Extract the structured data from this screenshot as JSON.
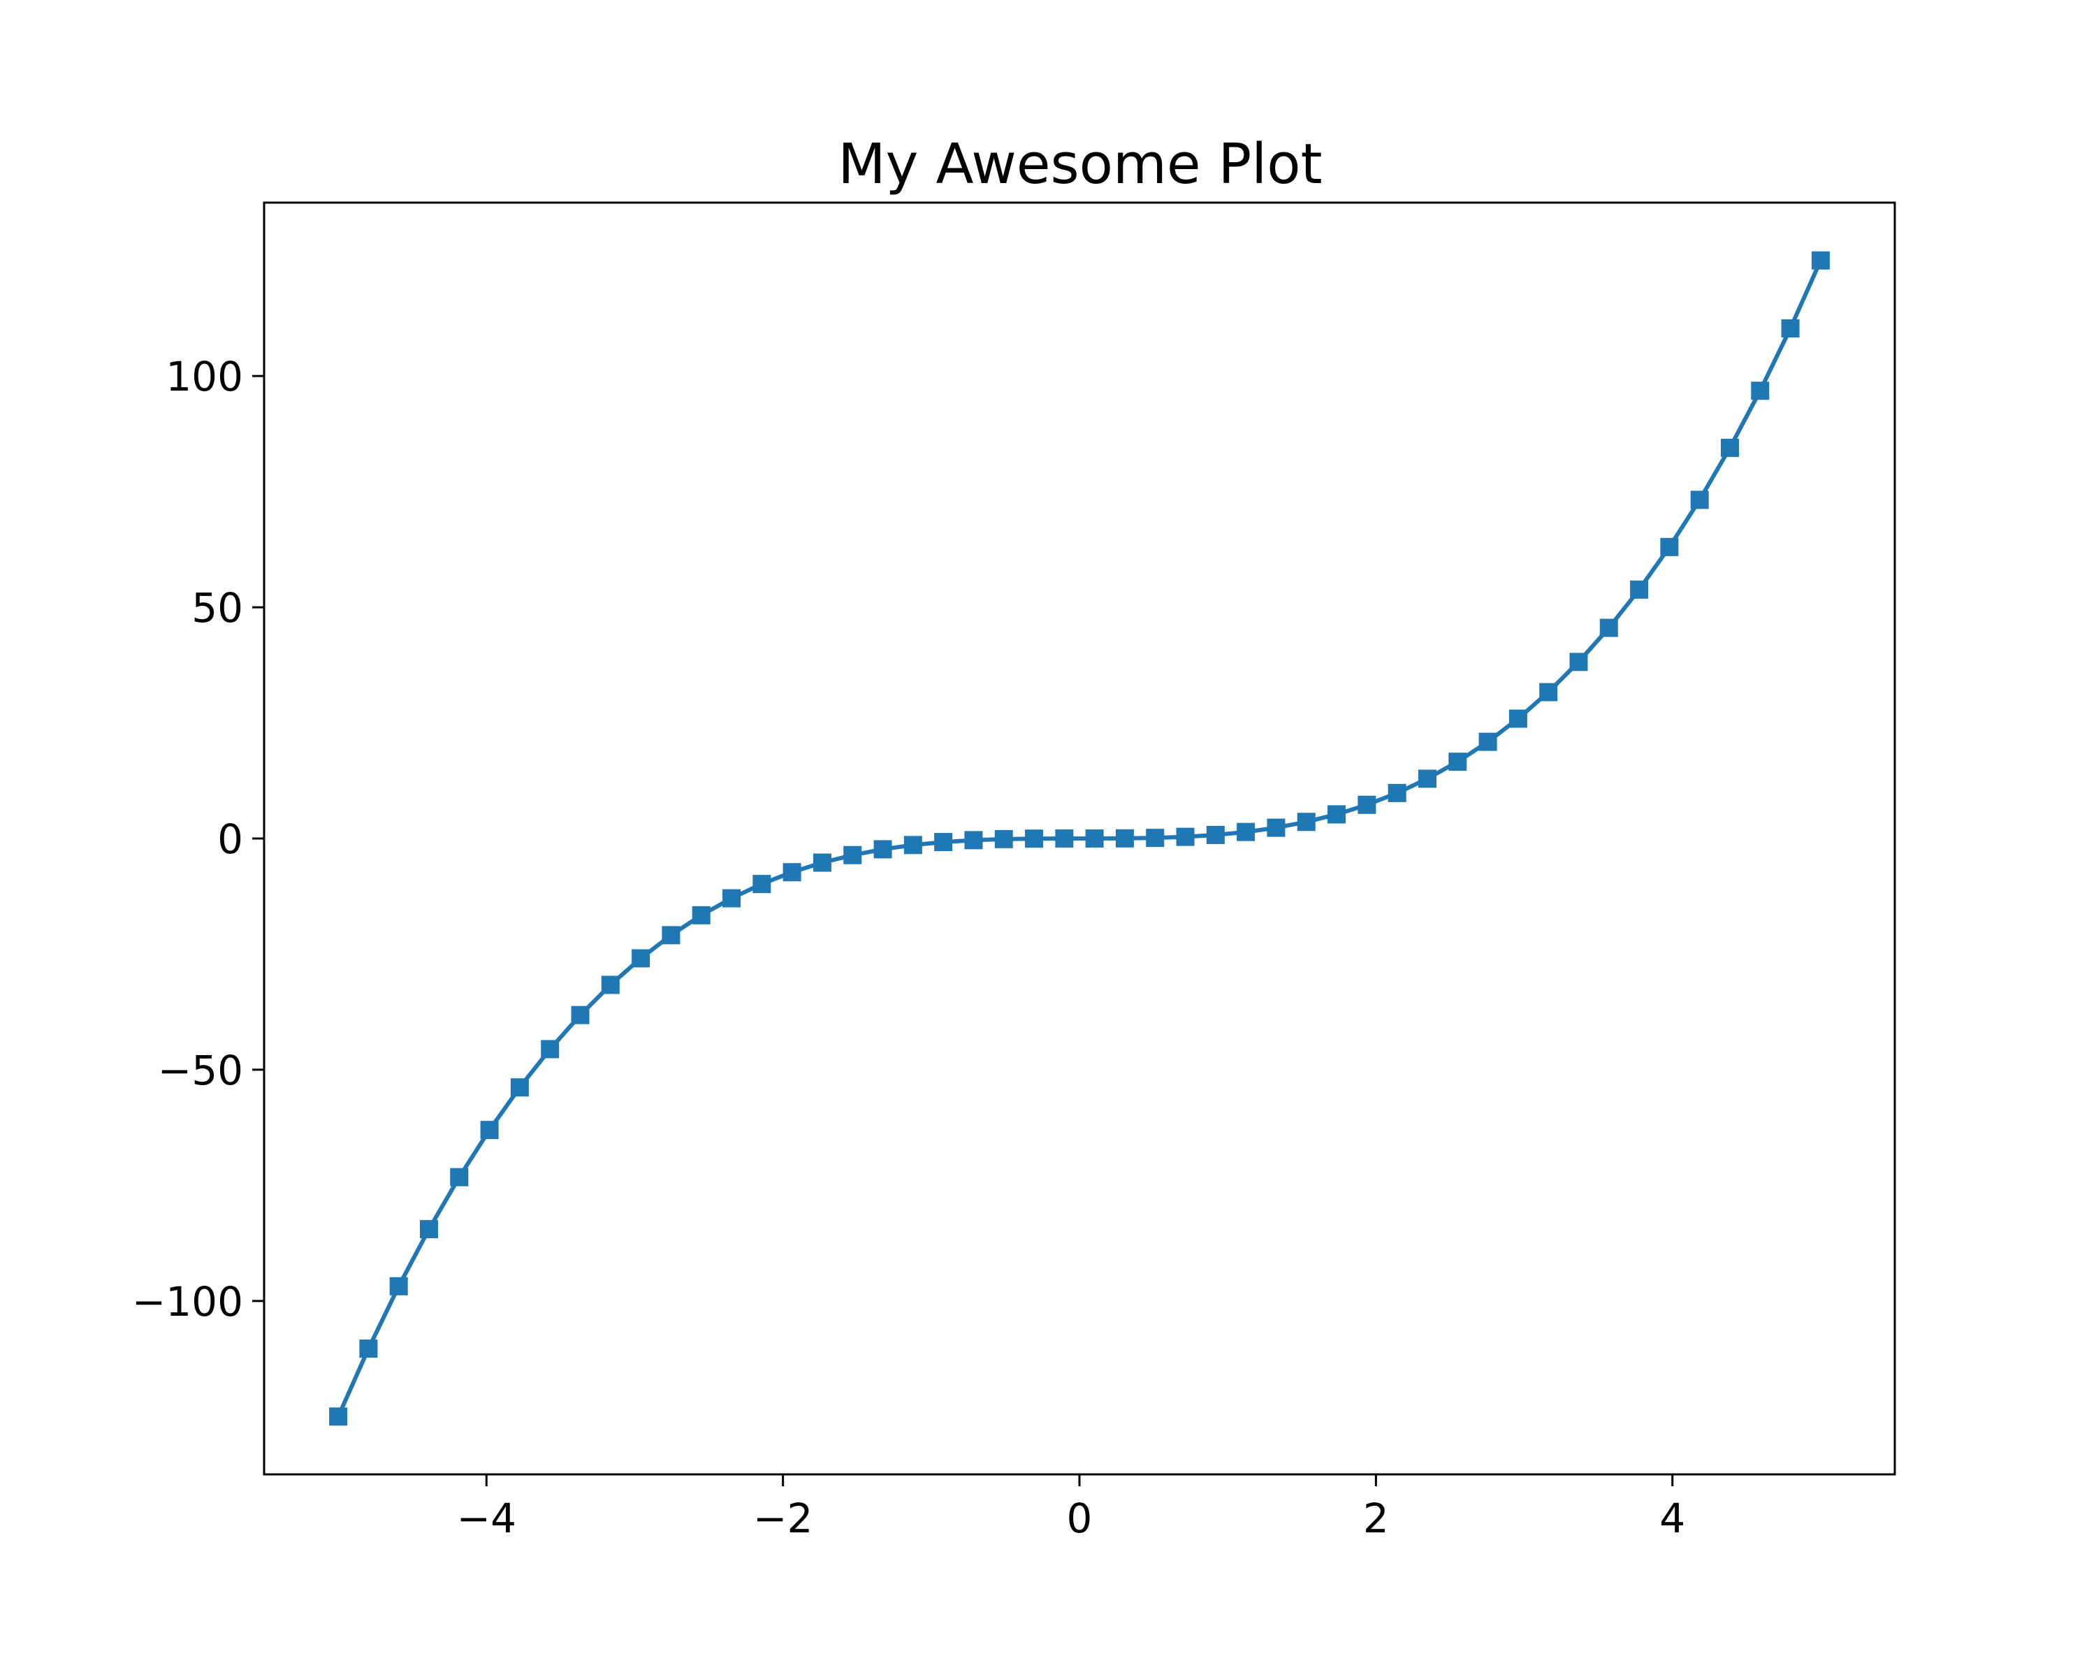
{
  "chart_data": {
    "type": "line",
    "title": "My Awesome Plot",
    "xlabel": "",
    "ylabel": "",
    "xlim": [
      -5.5,
      5.5
    ],
    "ylim": [
      -137.5,
      137.5
    ],
    "x_ticks": [
      -4,
      -2,
      0,
      2,
      4
    ],
    "x_tick_labels": [
      "−4",
      "−2",
      "0",
      "2",
      "4"
    ],
    "y_ticks": [
      -100,
      -50,
      0,
      50,
      100
    ],
    "y_tick_labels": [
      "−100",
      "−50",
      "0",
      "50",
      "100"
    ],
    "grid": false,
    "legend": "none",
    "series": [
      {
        "color": "#1f77b4",
        "marker": "square",
        "x": [
          -5.0,
          -4.7959,
          -4.5918,
          -4.3878,
          -4.1837,
          -3.9796,
          -3.7755,
          -3.5714,
          -3.3673,
          -3.1633,
          -2.9592,
          -2.7551,
          -2.551,
          -2.3469,
          -2.1429,
          -1.9388,
          -1.7347,
          -1.5306,
          -1.3265,
          -1.1224,
          -0.9184,
          -0.7143,
          -0.5102,
          -0.3061,
          -0.102,
          0.102,
          0.3061,
          0.5102,
          0.7143,
          0.9184,
          1.1224,
          1.3265,
          1.5306,
          1.7347,
          1.9388,
          2.1429,
          2.3469,
          2.551,
          2.7551,
          2.9592,
          3.1633,
          3.3673,
          3.5714,
          3.7755,
          3.9796,
          4.1837,
          4.3878,
          4.5918,
          4.7959,
          5.0
        ],
        "y": [
          -125.0,
          -110.31,
          -96.82,
          -84.48,
          -73.23,
          -63.03,
          -53.82,
          -45.55,
          -38.18,
          -31.65,
          -25.91,
          -20.91,
          -16.6,
          -12.93,
          -9.84,
          -7.29,
          -5.22,
          -3.59,
          -2.33,
          -1.41,
          -0.77,
          -0.36,
          -0.13,
          -0.03,
          0.0,
          0.0,
          0.03,
          0.13,
          0.36,
          0.77,
          1.41,
          2.33,
          3.59,
          5.22,
          7.29,
          9.84,
          12.93,
          16.6,
          20.91,
          25.91,
          31.65,
          38.18,
          45.55,
          53.82,
          63.03,
          73.23,
          84.48,
          96.82,
          110.31,
          125.0
        ]
      }
    ]
  }
}
